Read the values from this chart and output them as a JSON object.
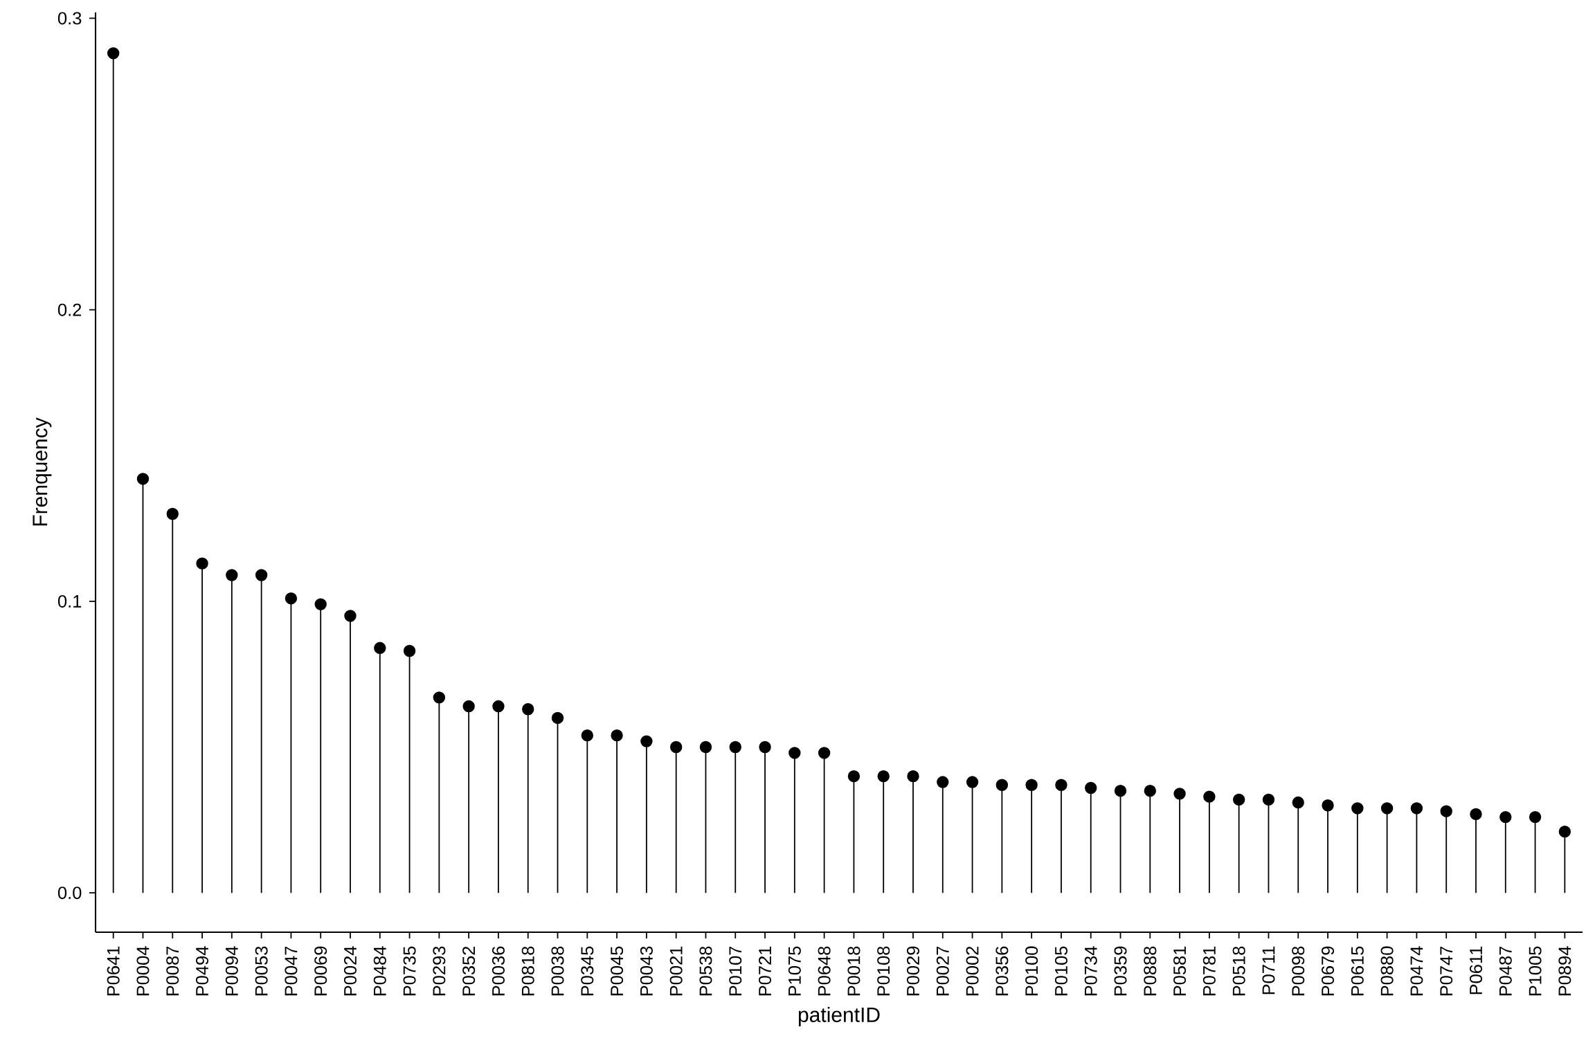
{
  "chart_data": {
    "type": "lollipop",
    "xlabel": "patientID",
    "ylabel": "Frenquency",
    "categories": [
      "P0641",
      "P0004",
      "P0087",
      "P0494",
      "P0094",
      "P0053",
      "P0047",
      "P0069",
      "P0024",
      "P0484",
      "P0735",
      "P0293",
      "P0352",
      "P0036",
      "P0818",
      "P0038",
      "P0345",
      "P0045",
      "P0043",
      "P0021",
      "P0538",
      "P0107",
      "P0721",
      "P1075",
      "P0648",
      "P0018",
      "P0108",
      "P0029",
      "P0027",
      "P0002",
      "P0356",
      "P0100",
      "P0105",
      "P0734",
      "P0359",
      "P0888",
      "P0581",
      "P0781",
      "P0518",
      "P0711",
      "P0098",
      "P0679",
      "P0615",
      "P0880",
      "P0474",
      "P0747",
      "P0611",
      "P0487",
      "P1005",
      "P0894"
    ],
    "values": [
      0.288,
      0.142,
      0.13,
      0.113,
      0.109,
      0.109,
      0.101,
      0.099,
      0.095,
      0.084,
      0.083,
      0.067,
      0.064,
      0.064,
      0.063,
      0.06,
      0.054,
      0.054,
      0.052,
      0.05,
      0.05,
      0.05,
      0.05,
      0.048,
      0.048,
      0.04,
      0.04,
      0.04,
      0.038,
      0.038,
      0.037,
      0.037,
      0.037,
      0.036,
      0.035,
      0.035,
      0.034,
      0.033,
      0.032,
      0.032,
      0.031,
      0.03,
      0.029,
      0.029,
      0.029,
      0.028,
      0.027,
      0.026,
      0.026,
      0.021
    ],
    "color": "#000000",
    "marker": "circle",
    "ylim": [
      -0.0135,
      0.302
    ],
    "yticks": [
      {
        "value": 0,
        "label": "0.0"
      },
      {
        "value": 0.1,
        "label": "0.1"
      },
      {
        "value": 0.2,
        "label": "0.2"
      },
      {
        "value": 0.3,
        "label": "0.3"
      }
    ]
  }
}
